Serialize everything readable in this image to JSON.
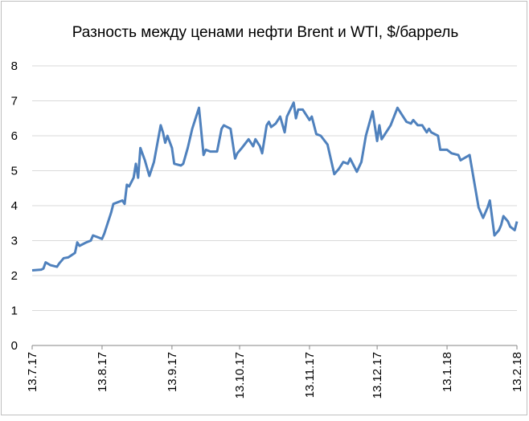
{
  "chart_data": {
    "type": "line",
    "title": "Разность между ценами нефти Brent и WTI, $/баррель",
    "x": [
      "2017-07-13",
      "2017-07-17",
      "2017-07-18",
      "2017-07-19",
      "2017-07-21",
      "2017-07-24",
      "2017-07-25",
      "2017-07-27",
      "2017-07-29",
      "2017-08-01",
      "2017-08-02",
      "2017-08-03",
      "2017-08-06",
      "2017-08-08",
      "2017-08-09",
      "2017-08-11",
      "2017-08-13",
      "2017-08-14",
      "2017-08-17",
      "2017-08-18",
      "2017-08-20",
      "2017-08-22",
      "2017-08-23",
      "2017-08-24",
      "2017-08-25",
      "2017-08-27",
      "2017-08-28",
      "2017-08-29",
      "2017-08-30",
      "2017-09-01",
      "2017-09-03",
      "2017-09-05",
      "2017-09-08",
      "2017-09-09",
      "2017-09-10",
      "2017-09-11",
      "2017-09-13",
      "2017-09-14",
      "2017-09-17",
      "2017-09-18",
      "2017-09-20",
      "2017-09-22",
      "2017-09-25",
      "2017-09-27",
      "2017-09-28",
      "2017-09-30",
      "2017-10-03",
      "2017-10-05",
      "2017-10-06",
      "2017-10-09",
      "2017-10-11",
      "2017-10-12",
      "2017-10-14",
      "2017-10-17",
      "2017-10-19",
      "2017-10-20",
      "2017-10-22",
      "2017-10-23",
      "2017-10-25",
      "2017-10-26",
      "2017-10-27",
      "2017-10-29",
      "2017-10-31",
      "2017-11-02",
      "2017-11-03",
      "2017-11-06",
      "2017-11-07",
      "2017-11-08",
      "2017-11-10",
      "2017-11-13",
      "2017-11-14",
      "2017-11-16",
      "2017-11-18",
      "2017-11-21",
      "2017-11-24",
      "2017-11-26",
      "2017-11-28",
      "2017-11-30",
      "2017-12-01",
      "2017-12-04",
      "2017-12-06",
      "2017-12-08",
      "2017-12-11",
      "2017-12-13",
      "2017-12-14",
      "2017-12-15",
      "2017-12-18",
      "2017-12-19",
      "2017-12-22",
      "2017-12-24",
      "2017-12-26",
      "2017-12-28",
      "2017-12-29",
      "2017-12-31",
      "2018-01-02",
      "2018-01-04",
      "2018-01-05",
      "2018-01-06",
      "2018-01-09",
      "2018-01-10",
      "2018-01-13",
      "2018-01-15",
      "2018-01-18",
      "2018-01-19",
      "2018-01-23",
      "2018-01-25",
      "2018-01-27",
      "2018-01-29",
      "2018-01-31",
      "2018-02-01",
      "2018-02-03",
      "2018-02-05",
      "2018-02-06",
      "2018-02-07",
      "2018-02-09",
      "2018-02-10",
      "2018-02-12",
      "2018-02-13"
    ],
    "series": [
      {
        "color": "#4f81bd",
        "values": [
          2.15,
          2.17,
          2.2,
          2.38,
          2.3,
          2.25,
          2.35,
          2.5,
          2.52,
          2.65,
          2.95,
          2.85,
          2.95,
          3.0,
          3.15,
          3.1,
          3.05,
          3.2,
          3.8,
          4.05,
          4.1,
          4.15,
          4.05,
          4.6,
          4.55,
          4.8,
          5.2,
          4.8,
          5.65,
          5.3,
          4.85,
          5.25,
          6.3,
          6.1,
          5.8,
          6.0,
          5.65,
          5.2,
          5.15,
          5.2,
          5.65,
          6.2,
          6.8,
          5.45,
          5.6,
          5.55,
          5.55,
          6.2,
          6.3,
          6.2,
          5.35,
          5.5,
          5.65,
          5.9,
          5.7,
          5.9,
          5.7,
          5.5,
          6.3,
          6.4,
          6.25,
          6.35,
          6.55,
          6.1,
          6.55,
          6.95,
          6.5,
          6.75,
          6.75,
          6.45,
          6.55,
          6.05,
          6.0,
          5.75,
          4.9,
          5.05,
          5.25,
          5.2,
          5.35,
          4.97,
          5.25,
          6.0,
          6.7,
          5.85,
          6.3,
          5.9,
          6.2,
          6.3,
          6.8,
          6.6,
          6.4,
          6.35,
          6.45,
          6.3,
          6.3,
          6.1,
          6.2,
          6.1,
          6.0,
          5.6,
          5.6,
          5.5,
          5.45,
          5.3,
          5.45,
          4.7,
          3.95,
          3.65,
          3.95,
          4.15,
          3.15,
          3.3,
          3.45,
          3.7,
          3.55,
          3.4,
          3.3,
          3.55
        ]
      }
    ],
    "xlim": [
      "2017-07-13",
      "2018-02-13"
    ],
    "xticks": [
      {
        "value": "2017-07-13",
        "label": "13.7.17"
      },
      {
        "value": "2017-08-13",
        "label": "13.8.17"
      },
      {
        "value": "2017-09-13",
        "label": "13.9.17"
      },
      {
        "value": "2017-10-13",
        "label": "13.10.17"
      },
      {
        "value": "2017-11-13",
        "label": "13.11.17"
      },
      {
        "value": "2017-12-13",
        "label": "13.12.17"
      },
      {
        "value": "2018-01-13",
        "label": "13.1.18"
      },
      {
        "value": "2018-02-13",
        "label": "13.2.18"
      }
    ],
    "ylim": [
      0,
      8
    ],
    "yticks": [
      0,
      1,
      2,
      3,
      4,
      5,
      6,
      7,
      8
    ],
    "grid": true
  }
}
